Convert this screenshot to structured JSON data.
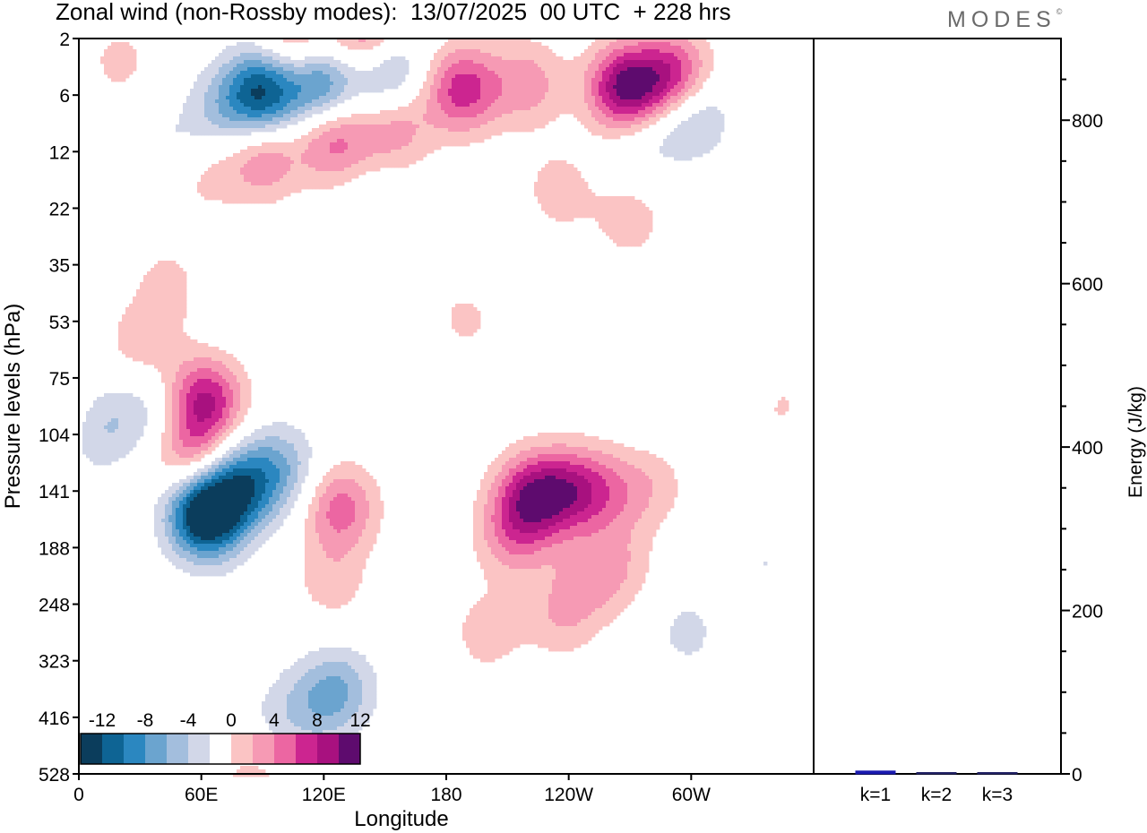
{
  "header": {
    "title": "Zonal wind (non-Rossby modes):  13/07/2025  00 UTC  + 228 hrs",
    "brand": "MODES",
    "brand_mark": "©"
  },
  "colors": {
    "negative": [
      "#0b3d5c",
      "#0e6494",
      "#2b87c0",
      "#6ba4cf",
      "#a3bedd",
      "#d2d7e8"
    ],
    "zero": "#ffffff",
    "positive": [
      "#fbc4c4",
      "#f69ab4",
      "#ec66a2",
      "#cc2590",
      "#a8117f",
      "#5e0b6e"
    ],
    "bars": [
      "#1a1ab0",
      "#222266",
      "#222266"
    ]
  },
  "chart_data": [
    {
      "type": "heatmap",
      "title": "Zonal wind (non-Rossby modes):  13/07/2025  00 UTC  + 228 hrs",
      "xlabel": "Longitude",
      "ylabel": "Pressure levels (hPa)",
      "x_ticks": [
        "0",
        "60E",
        "120E",
        "180",
        "120W",
        "60W"
      ],
      "x_tick_values": [
        0,
        60,
        120,
        180,
        240,
        300
      ],
      "xlim": [
        0,
        360
      ],
      "y_ticks": [
        "2",
        "6",
        "12",
        "22",
        "35",
        "53",
        "75",
        "104",
        "141",
        "188",
        "248",
        "323",
        "416",
        "528"
      ],
      "colorbar": {
        "labels": [
          "-12",
          "-8",
          "-4",
          "0",
          "4",
          "8",
          "12"
        ],
        "levels": [
          -14,
          -12,
          -10,
          -8,
          -6,
          -4,
          -2,
          2,
          4,
          6,
          8,
          10,
          12,
          14
        ]
      },
      "features": [
        {
          "lon": 62,
          "level": 8.4,
          "value": -16
        },
        {
          "lon": 80,
          "level": 7.9,
          "value": -9
        },
        {
          "lon": 100,
          "level": 7.6,
          "value": -5
        },
        {
          "lon": 62,
          "level": 6.4,
          "value": 10
        },
        {
          "lon": 55,
          "level": 7.4,
          "value": 6
        },
        {
          "lon": 8,
          "level": 6.9,
          "value": -4
        },
        {
          "lon": 32,
          "level": 6.6,
          "value": -3
        },
        {
          "lon": 72,
          "level": 4.5,
          "value": -1.6
        },
        {
          "lon": 128,
          "level": 8.3,
          "value": 7
        },
        {
          "lon": 124,
          "level": 9.6,
          "value": 3
        },
        {
          "lon": 128,
          "level": 11.5,
          "value": -5
        },
        {
          "lon": 115,
          "level": 11.8,
          "value": -3
        },
        {
          "lon": 98,
          "level": 12.0,
          "value": -2
        },
        {
          "lon": 50,
          "level": 12.5,
          "value": -2
        },
        {
          "lon": 222,
          "level": 8.1,
          "value": 10
        },
        {
          "lon": 242,
          "level": 8.0,
          "value": 8
        },
        {
          "lon": 212,
          "level": 8.8,
          "value": 5
        },
        {
          "lon": 236,
          "level": 10.2,
          "value": 3.5
        },
        {
          "lon": 250,
          "level": 9.6,
          "value": 3
        },
        {
          "lon": 265,
          "level": 9.3,
          "value": 3
        },
        {
          "lon": 200,
          "level": 10.5,
          "value": 3
        },
        {
          "lon": 262,
          "level": 8.0,
          "value": 4
        },
        {
          "lon": 282,
          "level": 7.9,
          "value": 2.5
        },
        {
          "lon": 298,
          "level": 10.5,
          "value": -2.5
        },
        {
          "lon": 336,
          "level": 9.3,
          "value": -2
        },
        {
          "lon": 350,
          "level": 6.6,
          "value": 3
        },
        {
          "lon": 280,
          "level": 6.2,
          "value": -2
        },
        {
          "lon": 270,
          "level": 3.2,
          "value": 3
        },
        {
          "lon": 235,
          "level": 2.7,
          "value": 3
        },
        {
          "lon": 190,
          "level": 4.9,
          "value": 2.5
        },
        {
          "lon": 200,
          "level": 3.7,
          "value": -2
        },
        {
          "lon": 145,
          "level": 3.0,
          "value": -1.8
        },
        {
          "lon": 268,
          "level": 0.9,
          "value": 13
        },
        {
          "lon": 292,
          "level": 0.7,
          "value": 10
        },
        {
          "lon": 300,
          "level": 1.3,
          "value": -6
        },
        {
          "lon": 276,
          "level": 1.7,
          "value": -3
        },
        {
          "lon": 188,
          "level": 0.9,
          "value": 9
        },
        {
          "lon": 220,
          "level": 0.8,
          "value": 5
        },
        {
          "lon": 90,
          "level": 0.95,
          "value": -12
        },
        {
          "lon": 118,
          "level": 0.75,
          "value": -10
        },
        {
          "lon": 150,
          "level": 0.5,
          "value": -8
        },
        {
          "lon": 70,
          "level": 1.3,
          "value": -4
        },
        {
          "lon": 90,
          "level": 2.1,
          "value": 6
        },
        {
          "lon": 125,
          "level": 1.8,
          "value": 7
        },
        {
          "lon": 155,
          "level": 1.6,
          "value": 5
        },
        {
          "lon": 60,
          "level": 2.4,
          "value": 3
        },
        {
          "lon": 45,
          "level": 4.4,
          "value": 3
        },
        {
          "lon": 30,
          "level": 5.4,
          "value": 3
        },
        {
          "lon": 142,
          "level": 0.0,
          "value": 9
        },
        {
          "lon": 105,
          "level": 0.0,
          "value": 4
        },
        {
          "lon": 45,
          "level": 2.0,
          "value": -2.5
        },
        {
          "lon": 110,
          "level": 0.3,
          "value": 3
        },
        {
          "lon": 20,
          "level": 0.4,
          "value": 2.5
        },
        {
          "lon": 85,
          "level": 13.2,
          "value": 3
        },
        {
          "lon": 195,
          "level": 13.5,
          "value": 2.5
        },
        {
          "lon": 260,
          "level": 13.5,
          "value": 2.5
        },
        {
          "lon": 335,
          "level": 12.4,
          "value": -2
        }
      ]
    },
    {
      "type": "bar",
      "categories": [
        "k=1",
        "k=2",
        "k=3"
      ],
      "values": [
        3.5,
        1.2,
        0.8
      ],
      "ylabel": "Energy (J/kg)",
      "ylim": [
        0,
        900
      ],
      "y_ticks": [
        0,
        200,
        400,
        600,
        800
      ]
    }
  ]
}
